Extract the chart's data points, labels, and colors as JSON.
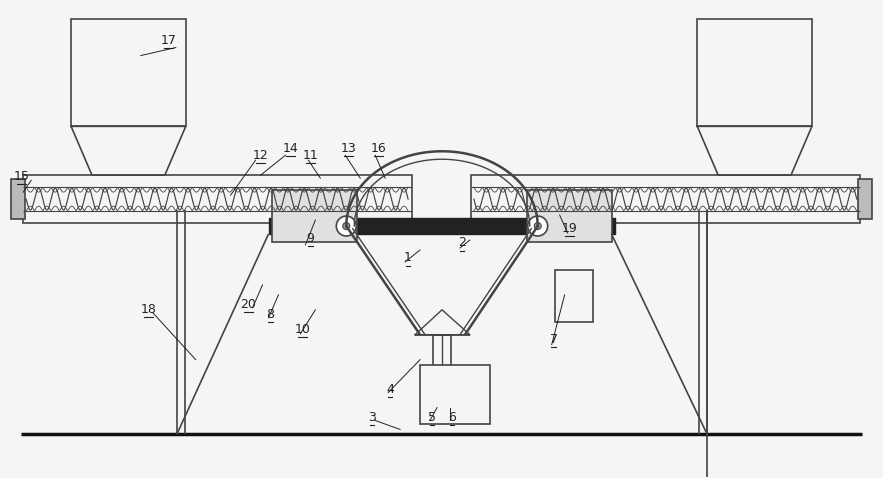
{
  "bg_color": "#f5f5f5",
  "line_color": "#444444",
  "dark_color": "#111111",
  "label_color": "#222222",
  "fig_width": 8.83,
  "fig_height": 4.78
}
